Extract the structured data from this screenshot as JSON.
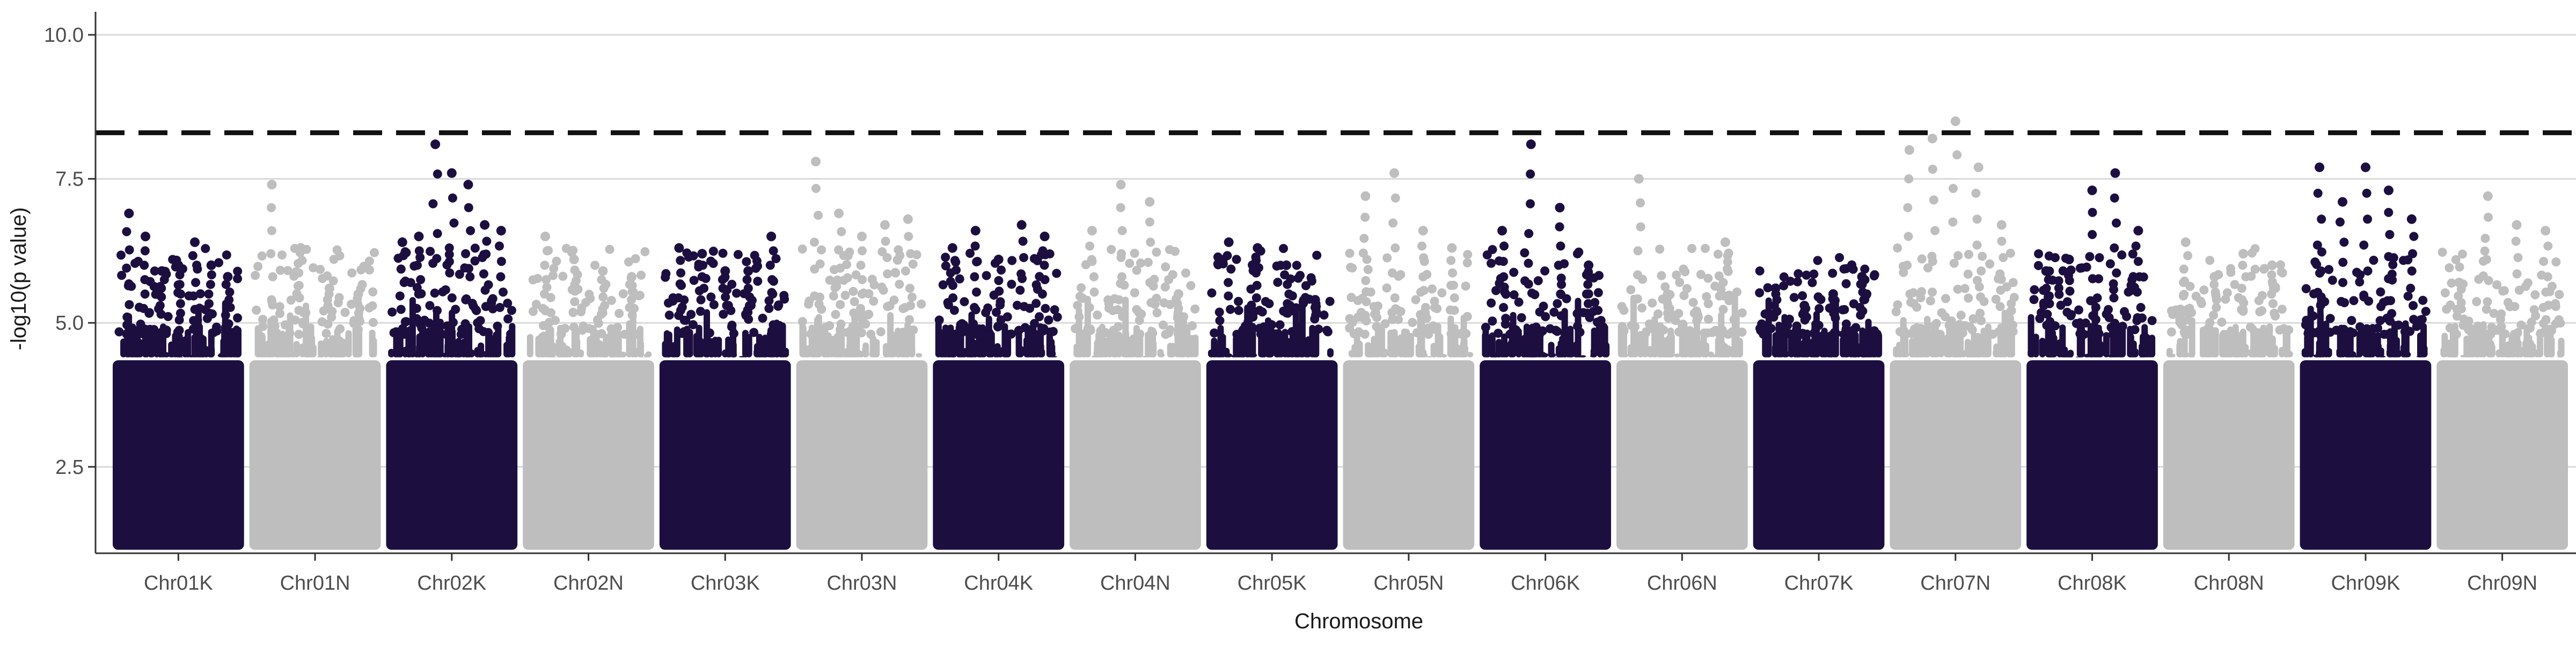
{
  "chart_data": {
    "type": "scatter",
    "subtype": "manhattan",
    "title": "",
    "xlabel": "Chromosome",
    "ylabel": "-log10(p value)",
    "ylim": [
      1,
      10.4
    ],
    "yticks": [
      2.5,
      5.0,
      7.5,
      10.0
    ],
    "ytick_labels": [
      "2.5",
      "5.0",
      "7.5",
      "10.0"
    ],
    "grid": "horizontal major",
    "legend": "none",
    "threshold": {
      "value": 8.3,
      "style": "dashed",
      "color": "#111111"
    },
    "colors": {
      "dark": "#1c0f40",
      "light": "#bebebe",
      "threshold": "#111111",
      "grid": "#d9d9d9",
      "axis": "#333333"
    },
    "categories": [
      "Chr01K",
      "Chr01N",
      "Chr02K",
      "Chr02N",
      "Chr03K",
      "Chr03N",
      "Chr04K",
      "Chr04N",
      "Chr05K",
      "Chr05N",
      "Chr06K",
      "Chr06N",
      "Chr07K",
      "Chr07N",
      "Chr08K",
      "Chr08N",
      "Chr09K",
      "Chr09N"
    ],
    "series": [
      {
        "values": [
          6.9,
          6.5,
          5.9,
          6.0,
          6.4,
          6.0,
          5.8
        ],
        "color_group": "dark"
      },
      {
        "values": [
          7.4,
          6.3,
          5.6,
          5.5
        ],
        "color_group": "light"
      },
      {
        "values": [
          6.4,
          6.5,
          8.1,
          7.6,
          7.4,
          6.7,
          6.6
        ],
        "color_group": "dark"
      },
      {
        "values": [
          6.5,
          6.1,
          5.9,
          5.8
        ],
        "color_group": "light"
      },
      {
        "values": [
          6.3,
          6.2,
          5.9,
          5.9,
          6.5
        ],
        "color_group": "dark"
      },
      {
        "values": [
          7.8,
          6.9,
          6.5,
          6.7,
          6.8
        ],
        "color_group": "light"
      },
      {
        "values": [
          6.3,
          6.6,
          6.1,
          6.7,
          6.5
        ],
        "color_group": "dark"
      },
      {
        "values": [
          6.6,
          7.4,
          7.1,
          5.5
        ],
        "color_group": "light"
      },
      {
        "values": [
          6.4,
          6.3,
          6.0,
          5.4
        ],
        "color_group": "dark"
      },
      {
        "values": [
          7.2,
          7.6,
          6.6,
          6.3
        ],
        "color_group": "light"
      },
      {
        "values": [
          6.6,
          8.1,
          7.0,
          6.0
        ],
        "color_group": "dark"
      },
      {
        "values": [
          7.5,
          5.5,
          5.2,
          6.4
        ],
        "color_group": "light"
      },
      {
        "values": [
          5.6,
          5.3,
          5.5,
          5.8
        ],
        "color_group": "dark"
      },
      {
        "values": [
          8.0,
          8.2,
          8.5,
          7.7,
          6.7
        ],
        "color_group": "light"
      },
      {
        "values": [
          5.9,
          6.1,
          7.3,
          7.6,
          6.6
        ],
        "color_group": "dark"
      },
      {
        "values": [
          6.4,
          5.8,
          6.2,
          6.0
        ],
        "color_group": "light"
      },
      {
        "values": [
          7.7,
          7.1,
          7.7,
          7.3,
          6.8
        ],
        "color_group": "dark"
      },
      {
        "values": [
          5.7,
          7.2,
          6.7,
          6.6
        ],
        "color_group": "light"
      }
    ]
  }
}
